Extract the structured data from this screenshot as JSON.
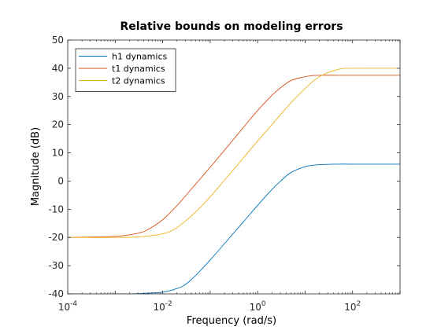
{
  "chart_data": {
    "type": "line",
    "title": "Relative bounds on modeling errors",
    "xlabel": "Frequency  (rad/s)",
    "ylabel": "Magnitude (dB)",
    "xscale": "log",
    "xlim": [
      0.0001,
      1000
    ],
    "ylim": [
      -40,
      50
    ],
    "x_ticks": [
      {
        "base": "10",
        "exp": "-4",
        "value": 0.0001
      },
      {
        "base": "10",
        "exp": "-2",
        "value": 0.01
      },
      {
        "base": "10",
        "exp": "0",
        "value": 1
      },
      {
        "base": "10",
        "exp": "2",
        "value": 100
      }
    ],
    "y_ticks": [
      -40,
      -30,
      -20,
      -10,
      0,
      10,
      20,
      30,
      40,
      50
    ],
    "grid": false,
    "legend_position": "top-left",
    "series": [
      {
        "name": "h1 dynamics",
        "color": "#0072BD",
        "x": [
          0.0001,
          0.001,
          0.003,
          0.01,
          0.02,
          0.03,
          0.05,
          0.1,
          0.2,
          0.5,
          1,
          2,
          3,
          5,
          10,
          20,
          50,
          100,
          1000
        ],
        "y": [
          -40,
          -40,
          -39.9,
          -39.4,
          -38.1,
          -36.7,
          -33.4,
          -28.0,
          -22.2,
          -14.5,
          -8.6,
          -3.0,
          -0.1,
          3.0,
          5.1,
          5.8,
          6.0,
          6.0,
          6.0
        ]
      },
      {
        "name": "t1 dynamics",
        "color": "#D95319",
        "x": [
          0.0001,
          0.001,
          0.003,
          0.005,
          0.01,
          0.02,
          0.05,
          0.1,
          0.2,
          0.5,
          1,
          2,
          3,
          5,
          10,
          20,
          100,
          1000
        ],
        "y": [
          -20,
          -19.6,
          -18.5,
          -17.1,
          -13.7,
          -8.7,
          -1.0,
          4.9,
          10.9,
          19.0,
          25.0,
          30.4,
          33.0,
          35.6,
          37.0,
          37.5,
          37.5,
          37.5
        ]
      },
      {
        "name": "t2 dynamics",
        "color": "#EDB120",
        "x": [
          0.0001,
          0.001,
          0.003,
          0.01,
          0.02,
          0.05,
          0.1,
          0.2,
          0.5,
          1,
          2,
          5,
          10,
          20,
          50,
          100,
          1000
        ],
        "y": [
          -20,
          -20,
          -19.8,
          -18.7,
          -16.5,
          -10.9,
          -5.6,
          0.3,
          8.2,
          14.2,
          20.0,
          27.7,
          32.8,
          37.0,
          39.6,
          40.0,
          40.0
        ]
      }
    ]
  }
}
